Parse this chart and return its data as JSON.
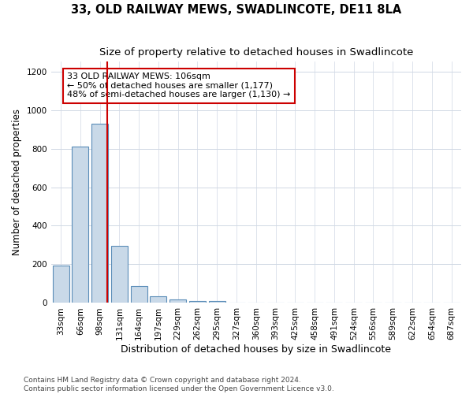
{
  "title": "33, OLD RAILWAY MEWS, SWADLINCOTE, DE11 8LA",
  "subtitle": "Size of property relative to detached houses in Swadlincote",
  "xlabel": "Distribution of detached houses by size in Swadlincote",
  "ylabel": "Number of detached properties",
  "bin_labels": [
    "33sqm",
    "66sqm",
    "98sqm",
    "131sqm",
    "164sqm",
    "197sqm",
    "229sqm",
    "262sqm",
    "295sqm",
    "327sqm",
    "360sqm",
    "393sqm",
    "425sqm",
    "458sqm",
    "491sqm",
    "524sqm",
    "556sqm",
    "589sqm",
    "622sqm",
    "654sqm",
    "687sqm"
  ],
  "bar_values": [
    193,
    810,
    930,
    295,
    88,
    35,
    18,
    12,
    8,
    0,
    0,
    0,
    0,
    0,
    0,
    0,
    0,
    0,
    0,
    0,
    0
  ],
  "bar_color": "#c9d9e8",
  "bar_edge_color": "#5b8db8",
  "bar_edge_width": 0.8,
  "highlight_line_bin": 2,
  "highlight_line_color": "#cc0000",
  "annotation_text": "33 OLD RAILWAY MEWS: 106sqm\n← 50% of detached houses are smaller (1,177)\n48% of semi-detached houses are larger (1,130) →",
  "annotation_box_color": "white",
  "annotation_box_edge_color": "#cc0000",
  "ylim": [
    0,
    1250
  ],
  "yticks": [
    0,
    200,
    400,
    600,
    800,
    1000,
    1200
  ],
  "grid_color": "#d0d8e4",
  "background_color": "white",
  "footnote": "Contains HM Land Registry data © Crown copyright and database right 2024.\nContains public sector information licensed under the Open Government Licence v3.0.",
  "title_fontsize": 10.5,
  "subtitle_fontsize": 9.5,
  "xlabel_fontsize": 9,
  "ylabel_fontsize": 8.5,
  "tick_fontsize": 7.5,
  "annotation_fontsize": 8,
  "footnote_fontsize": 6.5
}
